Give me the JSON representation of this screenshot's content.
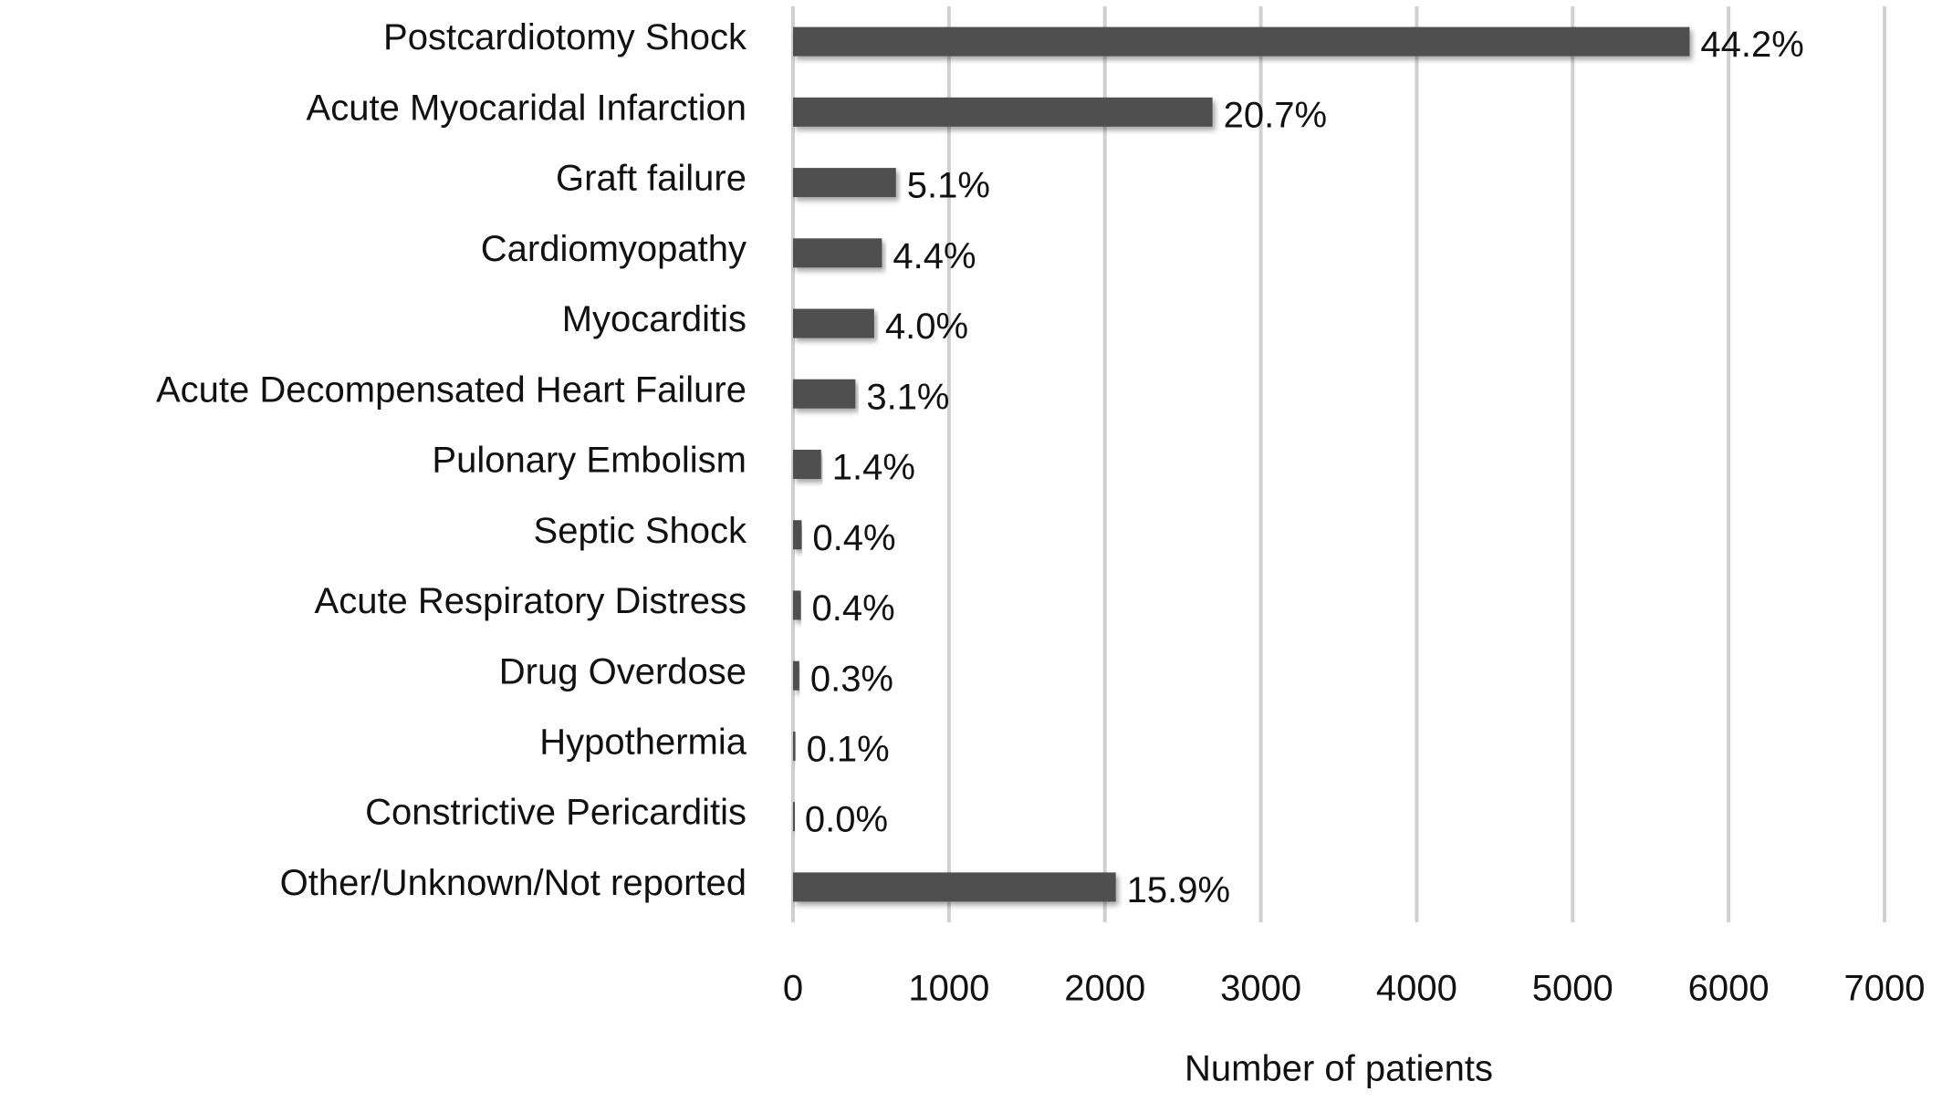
{
  "chart_data": {
    "type": "bar",
    "orientation": "horizontal",
    "x_label": "Number of patients",
    "categories": [
      "Postcardiotomy Shock",
      "Acute Myocaridal Infarction",
      "Graft failure",
      "Cardiomyopathy",
      "Myocarditis",
      "Acute Decompensated Heart Failure",
      "Pulonary Embolism",
      "Septic Shock",
      "Acute Respiratory Distress",
      "Drug Overdose",
      "Hypothermia",
      "Constrictive Pericarditis",
      "Other/Unknown/Not reported"
    ],
    "values": [
      5750,
      2690,
      660,
      570,
      520,
      400,
      180,
      55,
      50,
      40,
      15,
      5,
      2070
    ],
    "percent_labels": [
      "44.2%",
      "20.7%",
      "5.1%",
      "4.4%",
      "4.0%",
      "3.1%",
      "1.4%",
      "0.4%",
      "0.4%",
      "0.3%",
      "0.1%",
      "0.0%",
      "15.9%"
    ],
    "color": "#505050",
    "xlim": [
      0,
      7000
    ],
    "xticks": [
      0,
      1000,
      2000,
      3000,
      4000,
      5000,
      6000,
      7000
    ],
    "grid": true
  }
}
